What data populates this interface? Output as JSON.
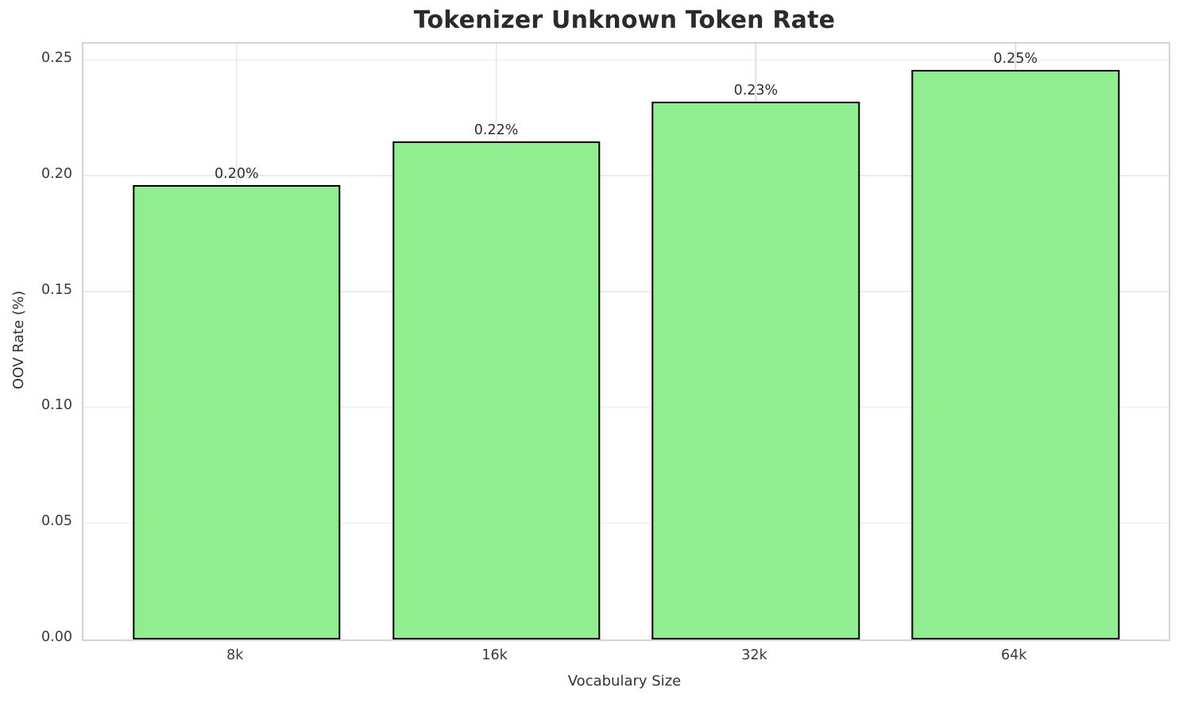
{
  "chart_data": {
    "type": "bar",
    "title": "Tokenizer Unknown Token Rate",
    "xlabel": "Vocabulary Size",
    "ylabel": "OOV Rate (%)",
    "categories": [
      "8k",
      "16k",
      "32k",
      "64k"
    ],
    "values": [
      0.196,
      0.215,
      0.232,
      0.246
    ],
    "value_labels": [
      "0.20%",
      "0.22%",
      "0.23%",
      "0.25%"
    ],
    "yticks": [
      0,
      0.05,
      0.1,
      0.15,
      0.2,
      0.25
    ],
    "ytick_labels": [
      "0.00",
      "0.05",
      "0.10",
      "0.15",
      "0.20",
      "0.25"
    ],
    "ylim": [
      0,
      0.2572
    ],
    "grid": true,
    "legend": "none",
    "bar_color": "#90EE90",
    "bar_edge_color": "#000000",
    "grid_color_h": "#ebebeb",
    "grid_color_v": "#dedede",
    "spine_color": "#d4d4d4"
  }
}
